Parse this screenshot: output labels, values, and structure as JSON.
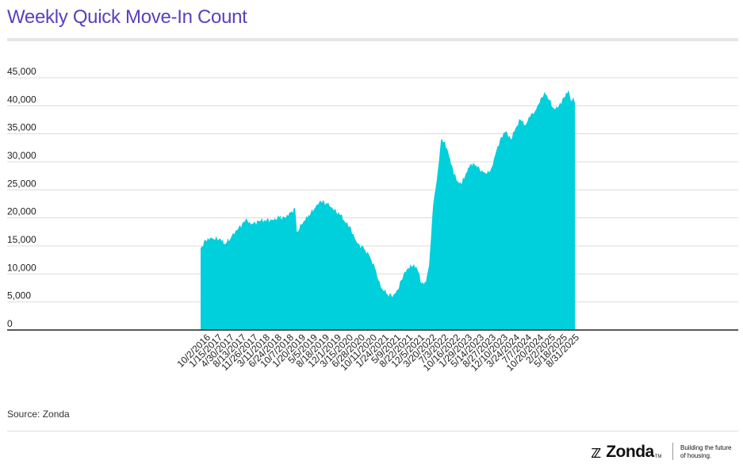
{
  "colors": {
    "title": "#5b3fbe",
    "area": "#00cfdc",
    "grid": "#dcdcdc",
    "axis": "#222222",
    "text": "#222222"
  },
  "source": "Source: Zonda",
  "brand": {
    "mark_icon": "zonda-z-icon",
    "name": "Zonda",
    "tm": "TM",
    "tagline_1": "Building the future",
    "tagline_2": "of housing."
  },
  "chart_data": {
    "type": "area",
    "title": "Weekly Quick Move-In Count",
    "xlabel": "",
    "ylabel": "",
    "ylim": [
      0,
      45000
    ],
    "yticks": [
      0,
      5000,
      10000,
      15000,
      20000,
      25000,
      30000,
      35000,
      40000,
      45000
    ],
    "ytick_labels": [
      "0",
      "5,000",
      "10,000",
      "15,000",
      "20,000",
      "25,000",
      "30,000",
      "35,000",
      "40,000",
      "45,000"
    ],
    "xticks": [
      "10/2/2016",
      "1/15/2017",
      "4/30/2017",
      "8/13/2017",
      "11/26/2017",
      "3/11/2018",
      "6/24/2018",
      "10/7/2018",
      "1/20/2019",
      "5/5/2019",
      "8/18/2019",
      "12/1/2019",
      "3/15/2020",
      "6/28/2020",
      "10/11/2020",
      "1/24/2021",
      "5/9/2021",
      "8/22/2021",
      "12/5/2021",
      "3/20/2022",
      "7/3/2022",
      "10/16/2022",
      "1/29/2023",
      "5/14/2023",
      "8/27/2023",
      "12/10/2023",
      "3/24/2024",
      "7/7/2024",
      "10/20/2024",
      "2/2/2025",
      "5/18/2025",
      "8/31/2025"
    ],
    "grid": true,
    "legend": "none",
    "series": [
      {
        "x": [
          "10/2/2016",
          "11/13/2016",
          "1/15/2017",
          "3/26/2017",
          "4/30/2017",
          "6/25/2017",
          "8/13/2017",
          "10/29/2017",
          "12/24/2017",
          "3/11/2018",
          "6/24/2018",
          "8/19/2018",
          "10/7/2018",
          "11/25/2018",
          "1/6/2019",
          "1/20/2019",
          "3/3/2019",
          "5/5/2019",
          "6/30/2019",
          "8/18/2019",
          "10/13/2019",
          "12/1/2019",
          "2/9/2020",
          "3/15/2020",
          "4/26/2020",
          "6/28/2020",
          "8/30/2020",
          "10/11/2020",
          "12/13/2020",
          "1/24/2021",
          "3/21/2021",
          "5/9/2021",
          "6/20/2021",
          "8/8/2021",
          "9/19/2021",
          "10/31/2021",
          "12/5/2021",
          "1/16/2022",
          "2/20/2022",
          "3/20/2022",
          "4/24/2022",
          "6/5/2022",
          "7/3/2022",
          "8/7/2022",
          "9/11/2022",
          "10/16/2022",
          "11/20/2022",
          "12/25/2022",
          "1/29/2023",
          "3/5/2023",
          "4/9/2023",
          "5/14/2023",
          "6/25/2023",
          "8/6/2023",
          "9/17/2023",
          "10/29/2023",
          "12/10/2023",
          "1/21/2024",
          "3/3/2024",
          "4/14/2024",
          "5/26/2024",
          "7/7/2024",
          "8/18/2024",
          "9/29/2024",
          "11/10/2024",
          "12/22/2024",
          "2/2/2025",
          "3/16/2025",
          "4/27/2025",
          "6/8/2025",
          "7/20/2025",
          "8/17/2025",
          "8/31/2025",
          "9/14/2025"
        ],
        "values": [
          14500,
          16100,
          16300,
          16200,
          15300,
          16500,
          17800,
          19600,
          19000,
          19500,
          19700,
          20100,
          20100,
          21000,
          21700,
          17500,
          18800,
          20500,
          21800,
          23000,
          22500,
          21600,
          20500,
          19300,
          18500,
          15600,
          14500,
          13500,
          10500,
          7500,
          6500,
          6000,
          7200,
          9800,
          11000,
          11500,
          11000,
          8300,
          8500,
          11500,
          22000,
          28500,
          34000,
          33500,
          31000,
          28500,
          26500,
          26000,
          27500,
          29000,
          29800,
          29000,
          28500,
          27800,
          29000,
          32000,
          34500,
          35500,
          34000,
          36000,
          37500,
          36500,
          38000,
          39000,
          40500,
          42500,
          41000,
          39500,
          40000,
          41500,
          42800,
          40800,
          41500,
          40500
        ]
      }
    ]
  }
}
